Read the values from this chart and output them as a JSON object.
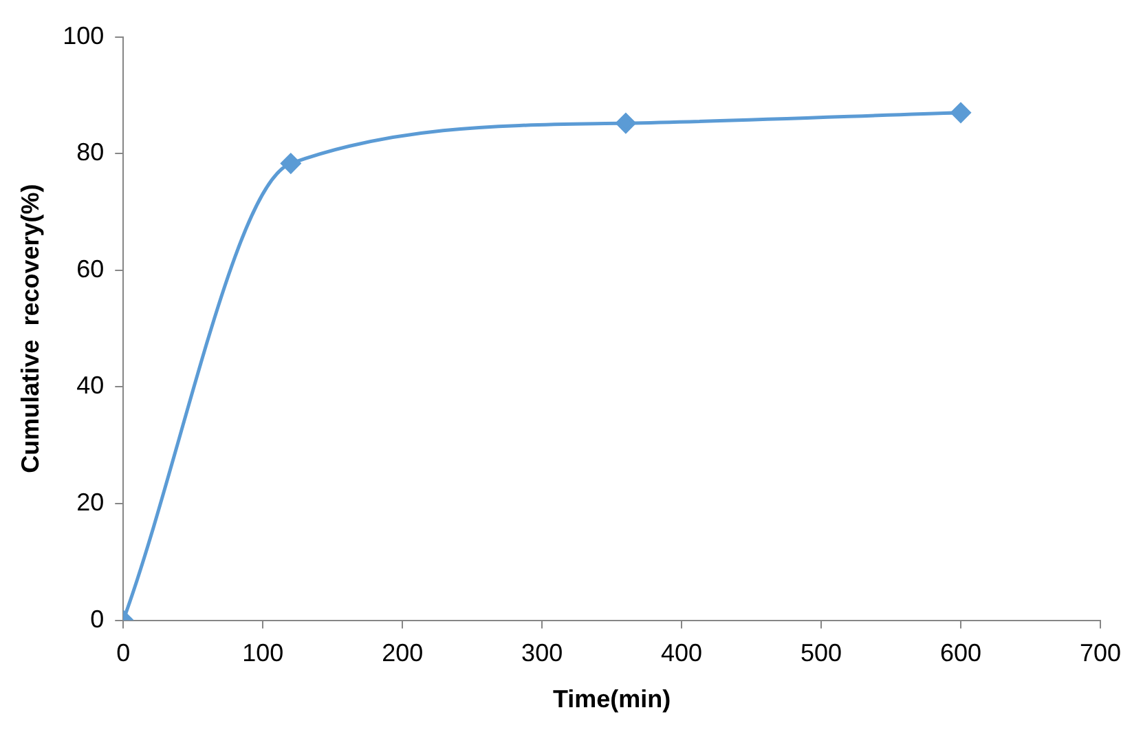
{
  "chart_data": {
    "type": "line",
    "xlabel": "Time(min)",
    "ylabel": "Cumulative  recovery(%)",
    "x": [
      0,
      120,
      360,
      600
    ],
    "series": [
      {
        "color": "#5b9bd5",
        "values": [
          0,
          78.3,
          85.2,
          87
        ]
      }
    ],
    "xlim": [
      0,
      700
    ],
    "xticks": [
      0,
      100,
      200,
      300,
      400,
      500,
      600,
      700
    ],
    "ylim": [
      0,
      100
    ],
    "yticks": [
      0,
      20,
      40,
      60,
      80,
      100
    ],
    "marker": "diamond",
    "line_style": "solid",
    "legend": false
  }
}
